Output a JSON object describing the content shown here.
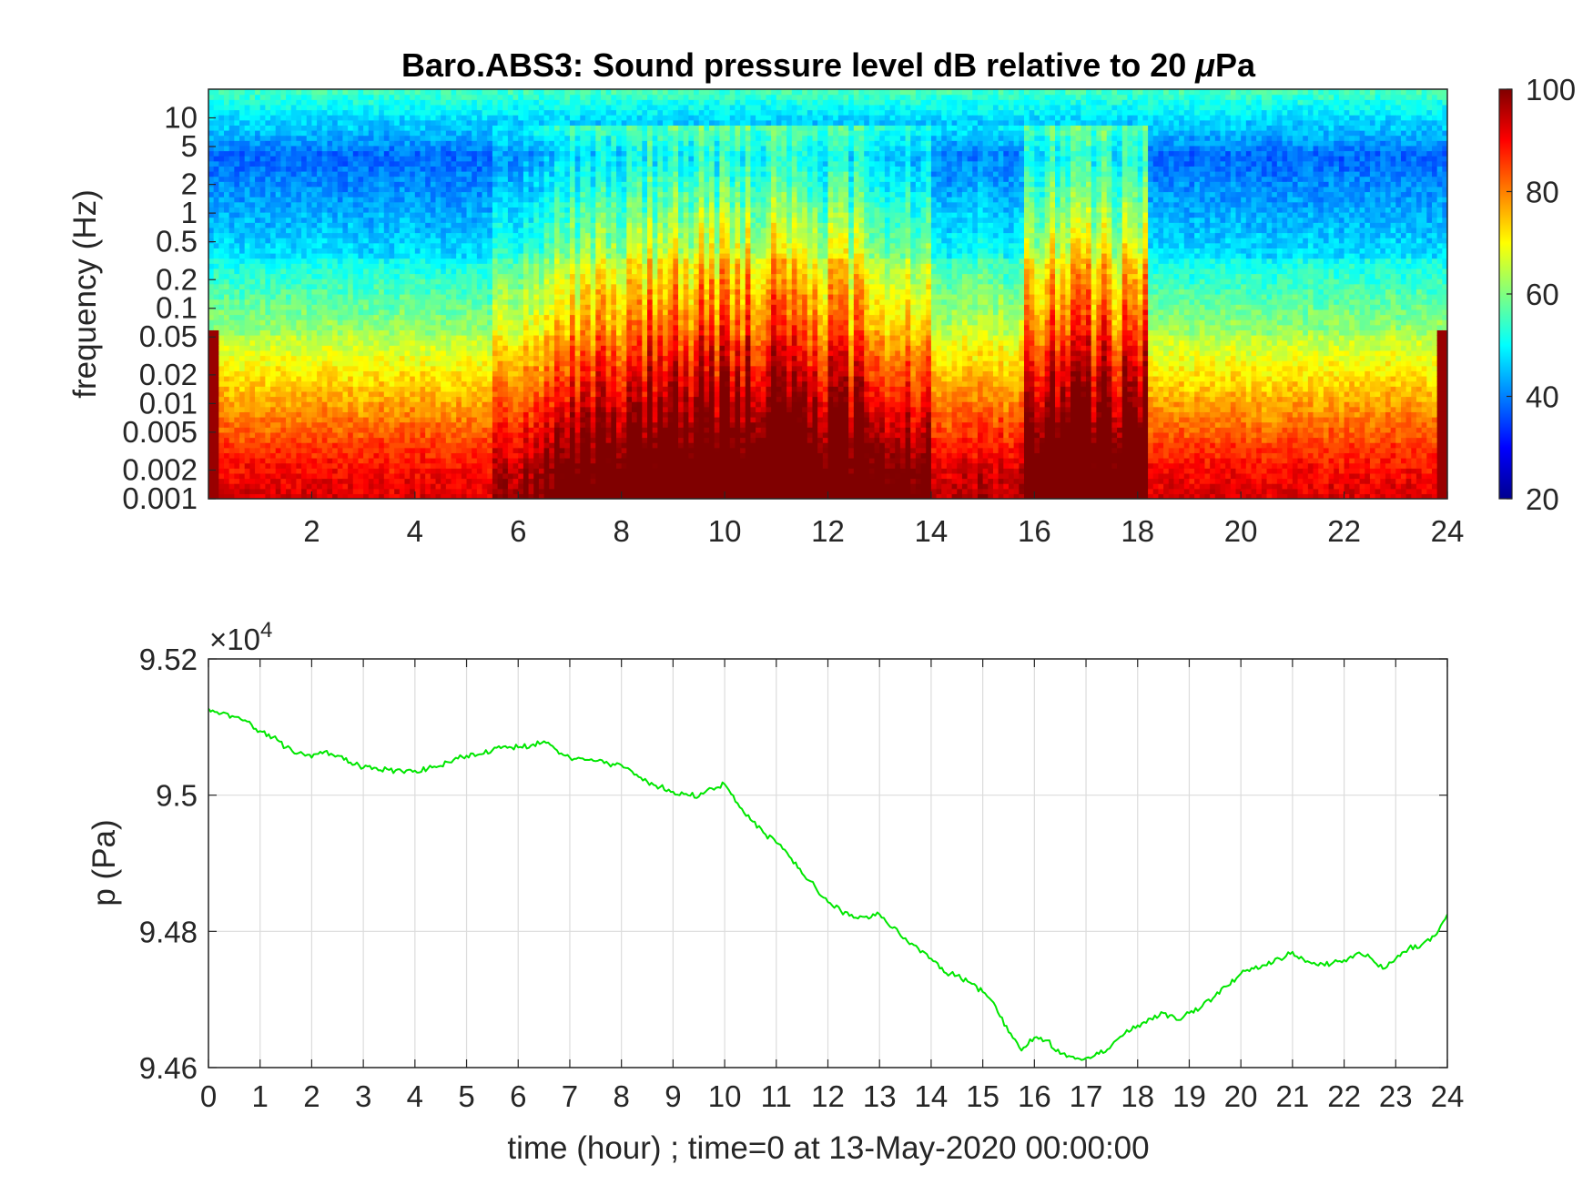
{
  "chart_data": [
    {
      "type": "heatmap",
      "title": "Baro.ABS3: Sound pressure level dB relative to 20 μPa",
      "title_prefix": "Baro.ABS3: Sound pressure level dB relative to 20 ",
      "title_unit_mu": "μ",
      "title_unit_rest": "Pa",
      "ylabel": "frequency (Hz)",
      "xlabel": "",
      "xlim": [
        0,
        24
      ],
      "ylim": [
        0.001,
        20
      ],
      "yscale": "log",
      "x_ticks": [
        2,
        4,
        6,
        8,
        10,
        12,
        14,
        16,
        18,
        20,
        22,
        24
      ],
      "x_tick_labels": [
        "2",
        "4",
        "6",
        "8",
        "10",
        "12",
        "14",
        "16",
        "18",
        "20",
        "22",
        "24"
      ],
      "y_ticks": [
        0.001,
        0.002,
        0.005,
        0.01,
        0.02,
        0.05,
        0.1,
        0.2,
        0.5,
        1,
        2,
        5,
        10
      ],
      "y_tick_labels": [
        "0.001",
        "0.002",
        "0.005",
        "0.01",
        "0.02",
        "0.05",
        "0.1",
        "0.2",
        "0.5",
        "1",
        "2",
        "5",
        "10"
      ],
      "colorbar": {
        "colormap": "jet",
        "range": [
          20,
          100
        ],
        "ticks": [
          20,
          40,
          60,
          80,
          100
        ],
        "tick_labels": [
          "20",
          "40",
          "60",
          "80",
          "100"
        ]
      },
      "active_periods_hours": [
        [
          6.5,
          14.0
        ],
        [
          15.8,
          18.2
        ]
      ],
      "quiet_periods_hours": [
        [
          0,
          5.5
        ],
        [
          18.3,
          24
        ]
      ],
      "colormap_colors": [
        "#00008f",
        "#0000ff",
        "#00ffff",
        "#ffff00",
        "#ff0000",
        "#800000"
      ]
    },
    {
      "type": "line",
      "xlabel": "time (hour) ; time=0 at 13-May-2020 00:00:00",
      "ylabel": "p (Pa)",
      "xlim": [
        0,
        24
      ],
      "ylim": [
        94600,
        95200
      ],
      "grid": true,
      "exponent_label_base": "×10",
      "exponent_label_power": "4",
      "x_ticks": [
        0,
        1,
        2,
        3,
        4,
        5,
        6,
        7,
        8,
        9,
        10,
        11,
        12,
        13,
        14,
        15,
        16,
        17,
        18,
        19,
        20,
        21,
        22,
        23,
        24
      ],
      "x_tick_labels": [
        "0",
        "1",
        "2",
        "3",
        "4",
        "5",
        "6",
        "7",
        "8",
        "9",
        "10",
        "11",
        "12",
        "13",
        "14",
        "15",
        "16",
        "17",
        "18",
        "19",
        "20",
        "21",
        "22",
        "23",
        "24"
      ],
      "y_ticks": [
        94600,
        94800,
        95000,
        95200
      ],
      "y_tick_labels": [
        "9.46",
        "9.48",
        "9.5",
        "9.52"
      ],
      "line_color": "#00e600",
      "series": [
        {
          "x": [
            0,
            0.25,
            0.5,
            0.75,
            1,
            1.25,
            1.5,
            1.75,
            2,
            2.25,
            2.5,
            2.75,
            3,
            3.25,
            3.5,
            3.75,
            4,
            4.25,
            4.5,
            4.75,
            5,
            5.25,
            5.5,
            5.75,
            6,
            6.25,
            6.5,
            6.75,
            7,
            7.25,
            7.5,
            7.75,
            8,
            8.25,
            8.5,
            8.75,
            9,
            9.25,
            9.5,
            9.75,
            10,
            10.25,
            10.5,
            10.75,
            11,
            11.25,
            11.5,
            11.75,
            12,
            12.25,
            12.5,
            12.75,
            13,
            13.25,
            13.5,
            13.75,
            14,
            14.25,
            14.5,
            14.75,
            15,
            15.25,
            15.5,
            15.75,
            16,
            16.25,
            16.5,
            16.75,
            17,
            17.25,
            17.5,
            17.75,
            18,
            18.25,
            18.5,
            18.75,
            19,
            19.25,
            19.5,
            19.75,
            20,
            20.25,
            20.5,
            20.75,
            21,
            21.25,
            21.5,
            21.75,
            22,
            22.25,
            22.5,
            22.75,
            23,
            23.25,
            23.5,
            23.75,
            24
          ],
          "y": [
            95127,
            95120,
            95115,
            95108,
            95094,
            95085,
            95070,
            95062,
            95055,
            95064,
            95058,
            95048,
            95040,
            95040,
            95037,
            95035,
            95036,
            95039,
            95043,
            95052,
            95058,
            95060,
            95066,
            95072,
            95070,
            95073,
            95079,
            95066,
            95055,
            95054,
            95050,
            95046,
            95044,
            95030,
            95020,
            95012,
            95005,
            95002,
            94998,
            95010,
            95016,
            94988,
            94964,
            94945,
            94930,
            94910,
            94885,
            94866,
            94843,
            94830,
            94820,
            94822,
            94825,
            94805,
            94790,
            94775,
            94760,
            94740,
            94735,
            94725,
            94711,
            94690,
            94652,
            94625,
            94644,
            94640,
            94620,
            94616,
            94614,
            94620,
            94633,
            94650,
            94662,
            94672,
            94680,
            94670,
            94680,
            94690,
            94705,
            94720,
            94738,
            94745,
            94750,
            94760,
            94770,
            94755,
            94750,
            94752,
            94758,
            94768,
            94762,
            94745,
            94760,
            94775,
            94780,
            94793,
            94825
          ]
        }
      ]
    }
  ]
}
